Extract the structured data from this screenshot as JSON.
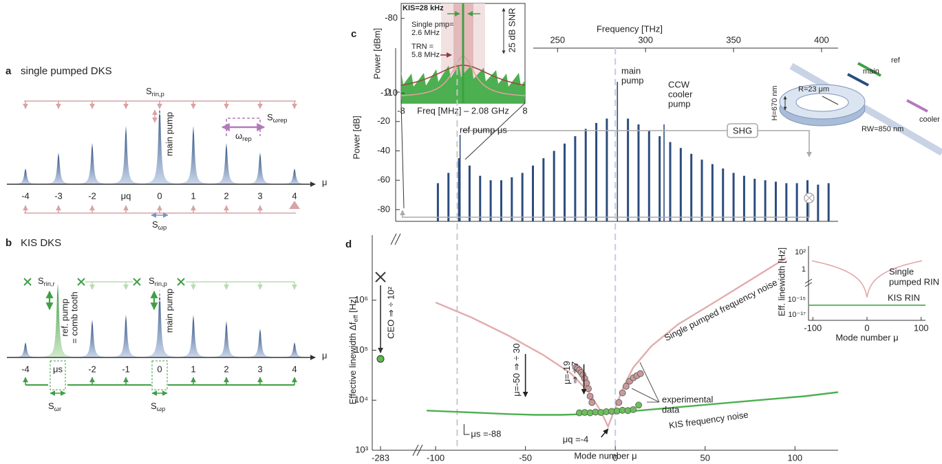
{
  "panel_a": {
    "label": "a",
    "title": "single pumped DKS",
    "s_rin": {
      "main": "S",
      "sub": "rin,p"
    },
    "s_wrep": {
      "main": "S",
      "sub": "ωrep"
    },
    "w_rep": {
      "main": "ω",
      "sub": "rep"
    },
    "main_pump": "main pump",
    "mode_labels": [
      "-4",
      "-3",
      "-2",
      "μq",
      "0",
      "1",
      "2",
      "3",
      "4"
    ],
    "axis_label": "μ",
    "s_wp": {
      "main": "S",
      "sub": "ωp"
    }
  },
  "panel_b": {
    "label": "b",
    "title": "KIS DKS",
    "s_rin_r": {
      "main": "S",
      "sub": "rin,r"
    },
    "s_rin_p": {
      "main": "S",
      "sub": "rin,p"
    },
    "ref_pump": [
      "ref. pump",
      "= comb tooth"
    ],
    "main_pump": "main pump",
    "mode_labels": [
      "-4",
      "μs",
      "-2",
      "-1",
      "0",
      "1",
      "2",
      "3",
      "4"
    ],
    "axis_label": "μ",
    "s_wr": {
      "main": "S",
      "sub": "ωr"
    },
    "s_wp": {
      "main": "S",
      "sub": "ωp"
    }
  },
  "chart_data": [
    {
      "type": "spectrum",
      "label": "c",
      "x_label": "Frequency [THz]",
      "y_label": "Power [dB]",
      "xlim": [
        158,
        409.4
      ],
      "xticks": [
        250,
        300,
        350,
        400
      ],
      "ylim": [
        -88,
        30
      ],
      "yticks": [
        0,
        -20,
        -40,
        -60,
        -80
      ],
      "series": [
        {
          "color": "#2b4c7e",
          "x": [
            182,
            188,
            194,
            200,
            206,
            212,
            218,
            224,
            230,
            236,
            242,
            248,
            254,
            260,
            266,
            272,
            278,
            290,
            296,
            302,
            308,
            314,
            320,
            326,
            332,
            338,
            344,
            350,
            356,
            362,
            368,
            374,
            380,
            386,
            392,
            398,
            404
          ],
          "values": [
            -62,
            -55,
            -45,
            -50,
            -57,
            -60,
            -60,
            -58,
            -55,
            -50,
            -45,
            -40,
            -35,
            -30,
            -25,
            -21,
            -18,
            -18,
            -22,
            -26,
            -30,
            -34,
            -38,
            -42,
            -46,
            -49,
            -52,
            -55,
            -57,
            -59,
            -60,
            -61,
            -62,
            -62,
            -60,
            -63,
            -62
          ]
        },
        {
          "color": "#2b4c7e",
          "x": [
            194.6,
            284,
            310.5
          ],
          "values": [
            -29,
            7,
            -22
          ]
        }
      ],
      "annotations": {
        "main_pump": [
          "main",
          "pump"
        ],
        "cooler": [
          "CCW",
          "cooler",
          "pump"
        ],
        "ref_pump": "ref pump μs",
        "shg": "SHG"
      },
      "ring": {
        "ref": "ref",
        "main": "main",
        "cooler": "cooler",
        "radius": "R=23 μm",
        "height": "H=670 nm",
        "width": "RW=850 nm"
      },
      "inset": {
        "xlim": [
          -8,
          8
        ],
        "xticks": [
          -8,
          8
        ],
        "ylim": [
          -114,
          -74
        ],
        "yticks": [
          -80,
          -110
        ],
        "x_label": "Freq [MHz] – 2.08 GHz",
        "y_label": "Power [dBm]",
        "kis": "KIS=28 kHz",
        "single": [
          "Single pmp=",
          "2.6 MHz"
        ],
        "trn": [
          "TRN =",
          "5.8 MHz"
        ],
        "snr": "25 dB SNR"
      }
    },
    {
      "type": "line",
      "label": "d",
      "log_y": true,
      "x_label": "Mode number μ",
      "y_label": {
        "main": "Effective linewidth Δf",
        "sub": "eff",
        "tail": "  [Hz]"
      },
      "xlim": [
        -105,
        124
      ],
      "xticks": [
        -100,
        -50,
        0,
        50,
        100
      ],
      "ylim": [
        1000,
        20000000
      ],
      "yticks": [
        {
          "value": 1000,
          "label": "10³"
        },
        {
          "value": 10000,
          "label": "10⁴"
        },
        {
          "value": 100000,
          "label": "10⁵"
        },
        {
          "value": 1000000,
          "label": "10⁶"
        }
      ],
      "break_tick": -283,
      "ceo_values": [
        2900000,
        67000
      ],
      "vlines": [
        -88,
        0
      ],
      "vline_colors": [
        "#c8c8c8",
        "#c3c9e8"
      ],
      "series": [
        {
          "color": "#e2acad",
          "x": [
            -100,
            -80,
            -60,
            -40,
            -25,
            -15,
            -8,
            -4,
            0,
            5,
            10,
            20,
            35,
            55,
            75,
            95
          ],
          "values": [
            900000,
            450000,
            200000,
            80000,
            35000,
            15000,
            6000,
            3000,
            7000,
            20000,
            45000,
            120000,
            330000,
            900000,
            2500000,
            7000000
          ]
        },
        {
          "color": "#4caf50",
          "x": [
            -105,
            -90,
            -75,
            -60,
            -45,
            -30,
            -15,
            0,
            15,
            30,
            45,
            60,
            75,
            90,
            105,
            124
          ],
          "values": [
            6200,
            5900,
            5600,
            5300,
            5100,
            5100,
            5300,
            5700,
            6300,
            7000,
            7800,
            8700,
            9700,
            10800,
            12000,
            14500
          ]
        }
      ],
      "points": [
        {
          "color": "#c9999a",
          "x": [
            -22,
            -21,
            -20,
            -19,
            -18,
            -17,
            -16,
            -15,
            -14,
            -13,
            2,
            4,
            6,
            8,
            10,
            12,
            14
          ],
          "values": [
            45000,
            43000,
            40000,
            36000,
            32000,
            27000,
            22000,
            17000,
            12000,
            9000,
            9000,
            14000,
            19000,
            24000,
            28000,
            31000,
            34000
          ]
        },
        {
          "color": "#6cc05a",
          "x": [
            -20,
            -17,
            -14,
            -11,
            -8,
            -5,
            -2,
            1,
            4,
            7,
            10,
            13
          ],
          "values": [
            5600,
            5700,
            5600,
            5800,
            5700,
            5900,
            6000,
            6100,
            6300,
            6200,
            6500,
            8000
          ]
        }
      ],
      "annotations": {
        "ceo": "CEO ⇒ ÷ 10²",
        "mu50": "μ=-50 ⇒ ÷ 30",
        "mu19": [
          "μ=-19",
          "⇒ ÷ 7"
        ],
        "mus": "μs =-88",
        "muq": "μq =-4",
        "experimental": [
          "experimental",
          "data"
        ],
        "single": "Single pumped frequency noise",
        "kis": "KIS frequency noise"
      },
      "inset": {
        "xlim": [
          -108,
          108
        ],
        "xticks": [
          -100,
          0,
          100
        ],
        "yticks": [
          "10²",
          "1",
          "10⁻¹⁵",
          "10⁻¹⁷"
        ],
        "y_label": "Eff. linewidth [Hz]",
        "x_label": "Mode number μ",
        "sp_label": [
          "Single",
          "pumped RIN"
        ],
        "kis_label": "KIS RIN"
      }
    }
  ]
}
